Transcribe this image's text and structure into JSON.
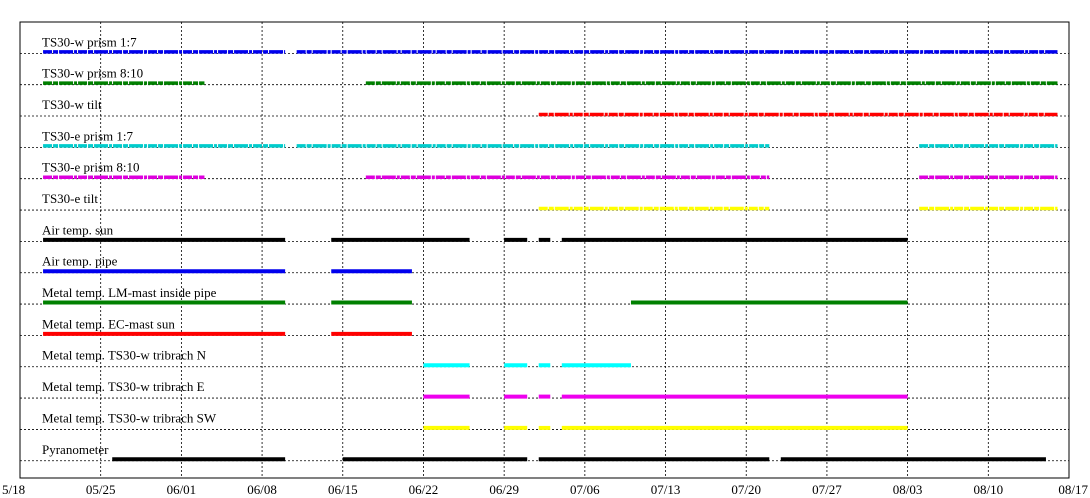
{
  "chart_data": {
    "type": "timeline",
    "title": "",
    "xlabel": "",
    "ylabel": "",
    "x_range": [
      "05/18",
      "08/17"
    ],
    "x_ticks": [
      "5/18",
      "05/25",
      "06/01",
      "06/08",
      "06/15",
      "06/22",
      "06/29",
      "07/06",
      "07/13",
      "07/20",
      "07/27",
      "08/03",
      "08/10",
      "08/17"
    ],
    "grid": true,
    "series": [
      {
        "name": "TS30-w prism 1:7",
        "color": "#0000ee",
        "style": "dotted",
        "segments": [
          [
            "05/20",
            "06/10"
          ],
          [
            "06/11",
            "06/29"
          ],
          [
            "06/29",
            "08/16"
          ]
        ]
      },
      {
        "name": "TS30-w prism 8:10",
        "color": "#008000",
        "style": "dotted",
        "segments": [
          [
            "05/20",
            "06/03"
          ],
          [
            "06/17",
            "08/16"
          ]
        ]
      },
      {
        "name": "TS30-w tilt",
        "color": "#ff0000",
        "style": "dotted",
        "segments": [
          [
            "07/02",
            "08/16"
          ]
        ]
      },
      {
        "name": "TS30-e prism 1:7",
        "color": "#00cccc",
        "style": "dotted",
        "segments": [
          [
            "05/20",
            "06/10"
          ],
          [
            "06/11",
            "06/29"
          ],
          [
            "06/29",
            "07/22"
          ],
          [
            "08/04",
            "08/16"
          ]
        ]
      },
      {
        "name": "TS30-e prism 8:10",
        "color": "#dd00dd",
        "style": "dotted",
        "segments": [
          [
            "05/20",
            "06/03"
          ],
          [
            "06/17",
            "07/22"
          ],
          [
            "08/04",
            "08/16"
          ]
        ]
      },
      {
        "name": "TS30-e tilt",
        "color": "#ffff00",
        "style": "dotted",
        "segments": [
          [
            "07/02",
            "07/22"
          ],
          [
            "08/04",
            "08/16"
          ]
        ]
      },
      {
        "name": "Air temp. sun",
        "color": "#000000",
        "style": "solid",
        "segments": [
          [
            "05/20",
            "06/10"
          ],
          [
            "06/14",
            "06/26"
          ],
          [
            "06/29",
            "07/01"
          ],
          [
            "07/02",
            "07/03"
          ],
          [
            "07/04",
            "08/03"
          ]
        ]
      },
      {
        "name": "Air temp. pipe",
        "color": "#0000ee",
        "style": "solid",
        "segments": [
          [
            "05/20",
            "06/10"
          ],
          [
            "06/14",
            "06/21"
          ]
        ]
      },
      {
        "name": "Metal temp. LM-mast inside pipe",
        "color": "#008000",
        "style": "solid",
        "segments": [
          [
            "05/20",
            "06/10"
          ],
          [
            "06/14",
            "06/21"
          ],
          [
            "07/10",
            "08/03"
          ]
        ]
      },
      {
        "name": "Metal temp. EC-mast sun",
        "color": "#ff0000",
        "style": "solid",
        "segments": [
          [
            "05/20",
            "06/10"
          ],
          [
            "06/14",
            "06/21"
          ]
        ]
      },
      {
        "name": "Metal temp. TS30-w tribrach N",
        "color": "#00ffff",
        "style": "solid",
        "segments": [
          [
            "06/22",
            "06/26"
          ],
          [
            "06/29",
            "07/01"
          ],
          [
            "07/02",
            "07/03"
          ],
          [
            "07/04",
            "07/10"
          ]
        ]
      },
      {
        "name": "Metal temp. TS30-w tribrach E",
        "color": "#ee00ee",
        "style": "solid",
        "segments": [
          [
            "06/22",
            "06/26"
          ],
          [
            "06/29",
            "07/01"
          ],
          [
            "07/02",
            "07/03"
          ],
          [
            "07/04",
            "08/03"
          ]
        ]
      },
      {
        "name": "Metal temp. TS30-w tribrach SW",
        "color": "#ffff00",
        "style": "solid",
        "segments": [
          [
            "06/22",
            "06/26"
          ],
          [
            "06/29",
            "07/01"
          ],
          [
            "07/02",
            "07/03"
          ],
          [
            "07/04",
            "08/03"
          ]
        ]
      },
      {
        "name": "Pyranometer",
        "color": "#000000",
        "style": "solid",
        "segments": [
          [
            "05/26",
            "06/10"
          ],
          [
            "06/15",
            "06/29"
          ],
          [
            "06/29",
            "07/01"
          ],
          [
            "07/02",
            "07/22"
          ],
          [
            "07/23",
            "08/15"
          ]
        ]
      }
    ]
  }
}
